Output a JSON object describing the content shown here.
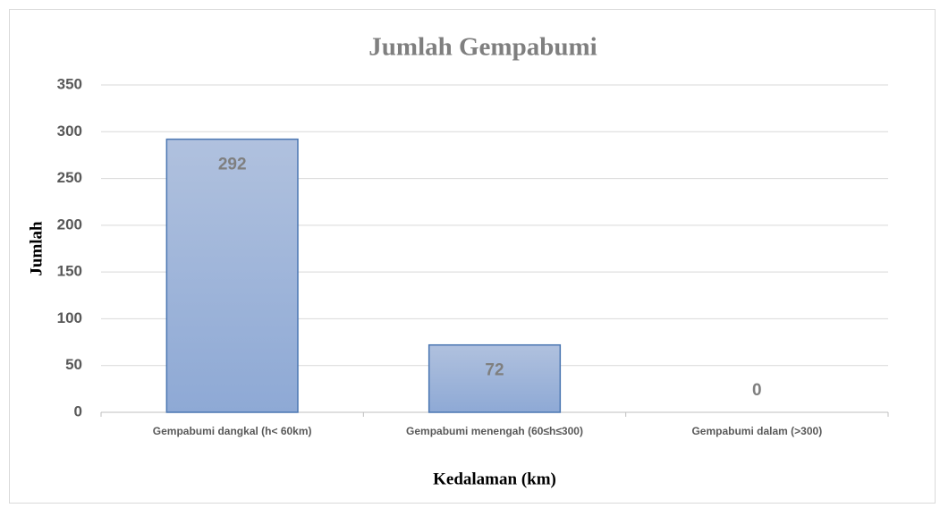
{
  "chart_data": {
    "type": "bar",
    "title": "Jumlah Gempabumi",
    "x_label": "Kedalaman (km)",
    "y_label": "Jumlah",
    "categories": [
      "Gempabumi dangkal (h< 60km)",
      "Gempabumi menengah (60≤h≤300)",
      "Gempabumi dalam (>300)"
    ],
    "values": [
      292,
      72,
      0
    ],
    "color": "#9fb5da",
    "ylim": [
      0,
      350
    ],
    "yticks": [
      0,
      50,
      100,
      150,
      200,
      250,
      300,
      350
    ],
    "grid": true
  }
}
